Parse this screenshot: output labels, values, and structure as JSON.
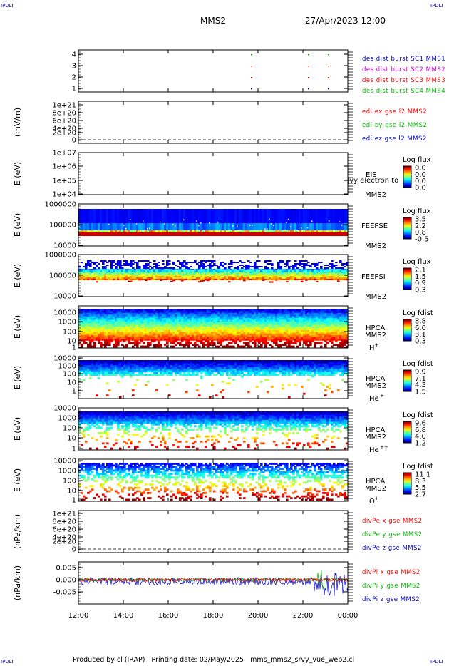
{
  "corner_label": "IPDLI",
  "header": {
    "spacecraft": "MMS2",
    "date": "27/Apr/2023 12:00"
  },
  "footer": {
    "text": "Produced by cl (IRAP)   Printing date: 02/May/2025   mms_mms2_srvy_vue_web2.cl"
  },
  "x_ticks": [
    "12:00",
    "14:00",
    "16:00",
    "18:00",
    "20:00",
    "22:00",
    "00:00"
  ],
  "colors": {
    "blue": "#0000cc",
    "magenta": "#cc00cc",
    "red": "#ff0000",
    "green": "#00bb00"
  },
  "chart_data": [
    {
      "type": "scatter",
      "ylim": [
        1,
        4
      ],
      "yticks": [
        "4",
        "3",
        "2",
        "1"
      ],
      "legend": [
        {
          "text": "des dist burst SC1 MMS1",
          "color": "#0000cc"
        },
        {
          "text": "des dist burst SC2 MMS2",
          "color": "#cc00cc"
        },
        {
          "text": "des dist burst SC3 MMS3",
          "color": "#ff0000"
        },
        {
          "text": "des dist burst SC4 MMS4",
          "color": "#00bb00"
        }
      ]
    },
    {
      "type": "line",
      "ylabel": "(mV/m)",
      "yticks": [
        "1e+21",
        "8e+20",
        "6e+20",
        "4e+20",
        "2e+20",
        "0"
      ],
      "legend": [
        {
          "text": "edi ex gse l2 MMS2",
          "color": "#ff0000"
        },
        {
          "text": "edi ey gse l2 MMS2",
          "color": "#00bb00"
        },
        {
          "text": "edi ez gse l2 MMS2",
          "color": "#0000cc"
        }
      ]
    },
    {
      "type": "heatmap",
      "ylabel": "E (eV)",
      "yticks": [
        "1e+07",
        "1e+06",
        "1e+05",
        "1e+04"
      ],
      "instrument": [
        "EIS",
        "MMS2"
      ],
      "cbar_title": "Log flux",
      "cbar_ticks": [
        "0.0",
        "0.0",
        "0.0",
        "0.0"
      ],
      "overlay_text": "l|vy electron to"
    },
    {
      "type": "heatmap",
      "ylabel": "E (eV)",
      "yticks": [
        "1000000",
        "100000",
        "10000"
      ],
      "instrument": [
        "FEEPSE",
        "MMS2"
      ],
      "cbar_title": "Log flux",
      "cbar_ticks": [
        "3.5",
        "2.2",
        "0.8",
        "-0.5"
      ]
    },
    {
      "type": "heatmap",
      "ylabel": "E (eV)",
      "yticks": [
        "1000000",
        "100000",
        "10000"
      ],
      "instrument": [
        "FEEPSI",
        "MMS2"
      ],
      "cbar_title": "Log flux",
      "cbar_ticks": [
        "2.1",
        "1.5",
        "0.9",
        "0.3"
      ]
    },
    {
      "type": "heatmap",
      "ylabel": "E (eV)",
      "yticks": [
        "10000",
        "1000",
        "100",
        "10",
        "1"
      ],
      "instrument": [
        "HPCA",
        "MMS2"
      ],
      "species": "H",
      "charge": "+",
      "cbar_title": "Log fdist",
      "cbar_ticks": [
        "8.8",
        "6.0",
        "3.1",
        "0.3"
      ]
    },
    {
      "type": "heatmap",
      "ylabel": "E (eV)",
      "yticks": [
        "10000",
        "1000",
        "100",
        "10",
        "1"
      ],
      "instrument": [
        "HPCA",
        "MMS2"
      ],
      "species": "He",
      "charge": "+",
      "cbar_title": "Log fdist",
      "cbar_ticks": [
        "9.9",
        "7.1",
        "4.3",
        "1.5"
      ]
    },
    {
      "type": "heatmap",
      "ylabel": "E (eV)",
      "yticks": [
        "10000",
        "1000",
        "100",
        "10",
        "1"
      ],
      "instrument": [
        "HPCA",
        "MMS2"
      ],
      "species": "He",
      "charge": "++",
      "cbar_title": "Log fdist",
      "cbar_ticks": [
        "9.6",
        "6.8",
        "4.0",
        "1.2"
      ]
    },
    {
      "type": "heatmap",
      "ylabel": "E (eV)",
      "yticks": [
        "10000",
        "1000",
        "100",
        "10",
        "1"
      ],
      "instrument": [
        "HPCA",
        "MMS2"
      ],
      "species": "O",
      "charge": "+",
      "cbar_title": "Log fdist",
      "cbar_ticks": [
        "11.1",
        "8.3",
        "5.5",
        "2.7"
      ]
    },
    {
      "type": "line",
      "ylabel": "(nPa/km)",
      "yticks": [
        "1e+21",
        "8e+20",
        "6e+20",
        "4e+20",
        "2e+20",
        "0"
      ],
      "legend": [
        {
          "text": "divPe x gse MMS2",
          "color": "#ff0000"
        },
        {
          "text": "divPe y gse MMS2",
          "color": "#00bb00"
        },
        {
          "text": "divPe z gse MMS2",
          "color": "#0000cc"
        }
      ]
    },
    {
      "type": "line",
      "ylabel": "(nPa/km)",
      "yticks": [
        "0.005",
        "0.000",
        "-0.005"
      ],
      "ylim": [
        -0.009,
        0.007
      ],
      "legend": [
        {
          "text": "divPi x gse MMS2",
          "color": "#ff0000"
        },
        {
          "text": "divPi y gse MMS2",
          "color": "#00bb00"
        },
        {
          "text": "divPi z gse MMS2",
          "color": "#0000cc"
        }
      ]
    }
  ]
}
